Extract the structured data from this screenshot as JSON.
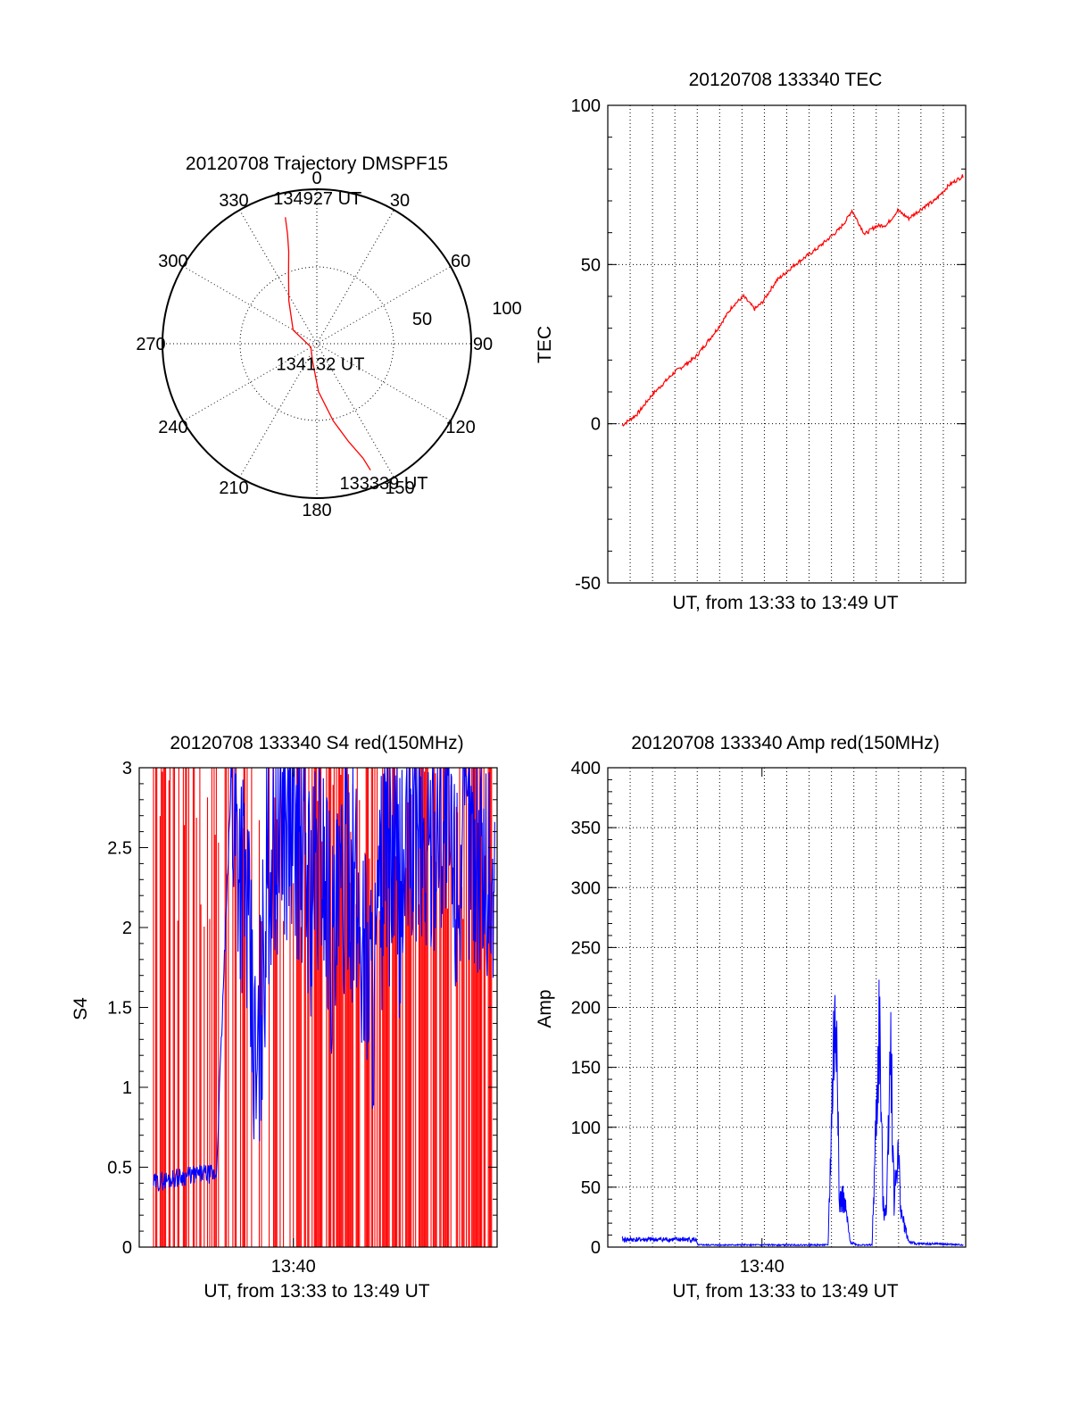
{
  "chart_data": [
    {
      "type": "scatter",
      "title": "20120708 Trajectory DMSPF15",
      "azimuth_labels": [
        "0",
        "30",
        "60",
        "90",
        "120",
        "150",
        "180",
        "210",
        "240",
        "270",
        "300",
        "330"
      ],
      "radial_labels": [
        "50",
        "100"
      ],
      "grid": true,
      "series": [
        {
          "color": "#ff0000",
          "points_az_el": [
            [
              346,
              14
            ],
            [
              345,
              24
            ],
            [
              343,
              34
            ],
            [
              338,
              46
            ],
            [
              327,
              60
            ],
            [
              300,
              74
            ],
            [
              240,
              86
            ],
            [
              195,
              80
            ],
            [
              178,
              62
            ],
            [
              168,
              44
            ],
            [
              162,
              30
            ],
            [
              158,
              18
            ],
            [
              157,
              10
            ]
          ]
        }
      ],
      "annotations": [
        {
          "text": "134927 UT",
          "az": 358,
          "el": 12
        },
        {
          "text": "134132 UT",
          "az": 180,
          "el": 86
        },
        {
          "text": "133339 UT",
          "az": 164,
          "el": 5
        }
      ]
    },
    {
      "type": "line",
      "title": "20120708 133340 TEC",
      "xlabel": "UT, from 13:33 to 13:49 UT",
      "ylabel": "TEC",
      "ylim": [
        -50,
        100
      ],
      "yticks": [
        "100",
        "50",
        "0",
        "-50"
      ],
      "grid": true,
      "series": [
        {
          "color": "#ff0000",
          "x": [
            "13:33:39",
            "13:34:20",
            "13:35:00",
            "13:36:00",
            "13:37:00",
            "13:38:00",
            "13:38:40",
            "13:39:10",
            "13:39:40",
            "13:40:00",
            "13:40:40",
            "13:41:30",
            "13:42:30",
            "13:43:30",
            "13:43:50",
            "13:44:05",
            "13:44:40",
            "13:45:10",
            "13:45:40",
            "13:46:10",
            "13:46:40",
            "13:47:20",
            "13:47:50",
            "13:48:30",
            "13:49:10"
          ],
          "values": [
            -0.5,
            3,
            9,
            16,
            21,
            30,
            37,
            40,
            36,
            38,
            45,
            50,
            55,
            61,
            64,
            67,
            59.5,
            62,
            62.5,
            67,
            64.5,
            68,
            70,
            75,
            78
          ]
        }
      ]
    },
    {
      "type": "line",
      "title": "20120708 133340 S4 red(150MHz)",
      "xlabel": "UT, from 13:33 to 13:49 UT",
      "ylabel": "S4",
      "ylim": [
        0,
        3
      ],
      "yticks": [
        "3",
        "2.5",
        "2",
        "1.5",
        "1",
        "0.5",
        "0"
      ],
      "xticks": [
        "13:40"
      ],
      "grid": false,
      "series": [
        {
          "color": "#ff0000",
          "style": "dense vertical spikes",
          "x": [
            "13:33:30",
            "13:34:10",
            "13:34:50",
            "13:35:40",
            "13:36:30",
            "13:37:30",
            "13:38:30",
            "13:39:40",
            "13:40:30",
            "13:41:10",
            "13:41:50",
            "13:42:30",
            "13:43:10",
            "13:43:50",
            "13:44:30",
            "13:45:10",
            "13:45:50",
            "13:46:30",
            "13:47:10",
            "13:47:50",
            "13:48:30",
            "13:49:00"
          ],
          "values": [
            3,
            3,
            3,
            3,
            3,
            3,
            3,
            3,
            3,
            3,
            3,
            3,
            3,
            3,
            3,
            3,
            3,
            3,
            3,
            3,
            3,
            3
          ]
        },
        {
          "color": "#0000ff",
          "x": [
            "13:33:39",
            "13:34:30",
            "13:35:20",
            "13:36:00",
            "13:36:30",
            "13:37:10",
            "13:37:50",
            "13:38:20",
            "13:38:50",
            "13:39:30",
            "13:40:10",
            "13:40:50",
            "13:41:20",
            "13:41:50",
            "13:42:30",
            "13:43:00",
            "13:43:40",
            "13:44:10",
            "13:44:50",
            "13:45:30",
            "13:46:00",
            "13:46:40",
            "13:47:20",
            "13:48:00",
            "13:48:40",
            "13:49:10"
          ],
          "values": [
            0.4,
            0.43,
            0.45,
            0.46,
            0.45,
            2.9,
            2.2,
            0.9,
            2.4,
            2.7,
            2.6,
            2.2,
            2.5,
            1.8,
            2.5,
            2.0,
            1.6,
            2.5,
            2.2,
            2.7,
            2.4,
            2.8,
            2.3,
            2.6,
            2.4,
            2.2
          ]
        }
      ]
    },
    {
      "type": "line",
      "title": "20120708 133340 Amp red(150MHz)",
      "xlabel": "UT, from 13:33 to 13:49 UT",
      "ylabel": "Amp",
      "ylim": [
        0,
        400
      ],
      "yticks": [
        "400",
        "350",
        "300",
        "250",
        "200",
        "150",
        "100",
        "50",
        "0"
      ],
      "xticks": [
        "13:40"
      ],
      "grid": true,
      "series": [
        {
          "color": "#0000ff",
          "x": [
            "13:33:39",
            "13:35:00",
            "13:37:00",
            "13:37:05",
            "13:40:00",
            "13:43:00",
            "13:43:15",
            "13:43:25",
            "13:43:30",
            "13:43:40",
            "13:43:50",
            "13:44:00",
            "13:44:20",
            "13:45:00",
            "13:45:20",
            "13:45:30",
            "13:45:40",
            "13:45:50",
            "13:46:00",
            "13:46:10",
            "13:46:20",
            "13:46:40",
            "13:47:00",
            "13:48:00",
            "13:49:10"
          ],
          "values": [
            7,
            7,
            7,
            2,
            2,
            2,
            180,
            222,
            40,
            45,
            30,
            5,
            2,
            2,
            205,
            35,
            40,
            213,
            40,
            90,
            30,
            5,
            3,
            3,
            2
          ]
        }
      ]
    }
  ]
}
